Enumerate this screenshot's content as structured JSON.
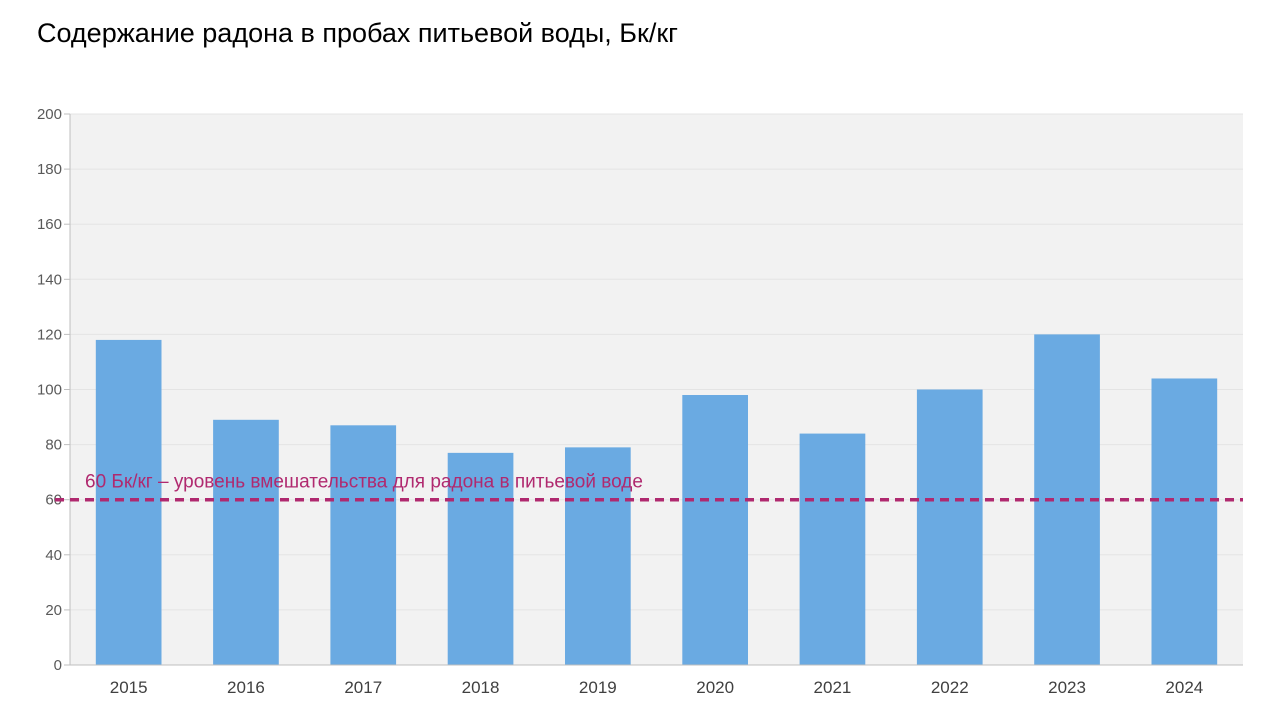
{
  "chart_data": {
    "type": "bar",
    "title": "Содержание радона в пробах питьевой воды, Бк/кг",
    "xlabel": "",
    "ylabel": "",
    "categories": [
      "2015",
      "2016",
      "2017",
      "2018",
      "2019",
      "2020",
      "2021",
      "2022",
      "2023",
      "2024"
    ],
    "values": [
      118,
      89,
      87,
      77,
      79,
      98,
      84,
      100,
      120,
      104
    ],
    "ylim": [
      0,
      200
    ],
    "yticks": [
      0,
      20,
      40,
      60,
      80,
      100,
      120,
      140,
      160,
      180,
      200
    ],
    "grid": true,
    "legend": "none",
    "reference_line": {
      "value": 60,
      "label": "60 Бк/кг – уровень вмешательства  для радона в питьевой воде",
      "style": "dashed"
    },
    "colors": {
      "bar": "#6aaae2",
      "plot_background": "#f2f2f2",
      "reference_line": "#b0296f",
      "grid": "#e4e4e4"
    }
  }
}
